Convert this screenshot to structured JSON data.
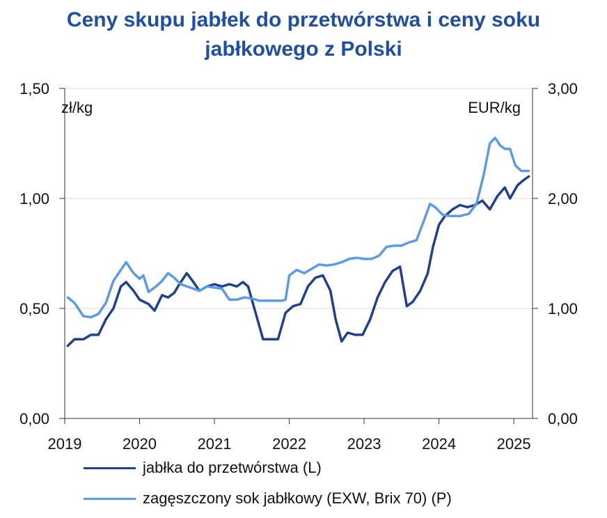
{
  "title_line1": "Ceny skupu jabłek do przetwórstwa i ceny soku",
  "title_line2": "jabłkowego z Polski",
  "chart_data": {
    "type": "line",
    "left_axis": {
      "unit": "zł/kg",
      "ylim": [
        0,
        1.5
      ],
      "ticks": [
        "0,00",
        "0,50",
        "1,00",
        "1,50"
      ]
    },
    "right_axis": {
      "unit": "EUR/kg",
      "ylim": [
        0,
        3.0
      ],
      "ticks": [
        "0,00",
        "1,00",
        "2,00",
        "3,00"
      ]
    },
    "x_axis": {
      "range": [
        2019.0,
        2025.25
      ],
      "ticks": [
        "2019",
        "2020",
        "2021",
        "2022",
        "2023",
        "2024",
        "2025"
      ]
    },
    "grid": true,
    "series": [
      {
        "name": "jabłka do przetwórstwa (L)",
        "axis": "left",
        "color": "#1f3f8f",
        "points": [
          [
            2019.04,
            0.33
          ],
          [
            2019.13,
            0.36
          ],
          [
            2019.25,
            0.36
          ],
          [
            2019.35,
            0.38
          ],
          [
            2019.45,
            0.38
          ],
          [
            2019.55,
            0.45
          ],
          [
            2019.65,
            0.5
          ],
          [
            2019.75,
            0.6
          ],
          [
            2019.82,
            0.62
          ],
          [
            2019.92,
            0.58
          ],
          [
            2020.0,
            0.54
          ],
          [
            2020.12,
            0.52
          ],
          [
            2020.2,
            0.49
          ],
          [
            2020.3,
            0.56
          ],
          [
            2020.38,
            0.55
          ],
          [
            2020.46,
            0.57
          ],
          [
            2020.55,
            0.62
          ],
          [
            2020.63,
            0.66
          ],
          [
            2020.72,
            0.62
          ],
          [
            2020.8,
            0.58
          ],
          [
            2020.9,
            0.6
          ],
          [
            2021.0,
            0.61
          ],
          [
            2021.1,
            0.6
          ],
          [
            2021.2,
            0.61
          ],
          [
            2021.3,
            0.6
          ],
          [
            2021.38,
            0.62
          ],
          [
            2021.45,
            0.6
          ],
          [
            2021.55,
            0.48
          ],
          [
            2021.65,
            0.36
          ],
          [
            2021.75,
            0.36
          ],
          [
            2021.85,
            0.36
          ],
          [
            2021.95,
            0.48
          ],
          [
            2022.05,
            0.51
          ],
          [
            2022.15,
            0.52
          ],
          [
            2022.25,
            0.6
          ],
          [
            2022.35,
            0.64
          ],
          [
            2022.45,
            0.65
          ],
          [
            2022.55,
            0.58
          ],
          [
            2022.62,
            0.45
          ],
          [
            2022.7,
            0.35
          ],
          [
            2022.78,
            0.39
          ],
          [
            2022.88,
            0.38
          ],
          [
            2022.98,
            0.38
          ],
          [
            2023.08,
            0.45
          ],
          [
            2023.18,
            0.55
          ],
          [
            2023.28,
            0.62
          ],
          [
            2023.38,
            0.67
          ],
          [
            2023.48,
            0.69
          ],
          [
            2023.57,
            0.51
          ],
          [
            2023.65,
            0.53
          ],
          [
            2023.75,
            0.58
          ],
          [
            2023.85,
            0.66
          ],
          [
            2023.92,
            0.78
          ],
          [
            2024.0,
            0.88
          ],
          [
            2024.08,
            0.92
          ],
          [
            2024.18,
            0.95
          ],
          [
            2024.28,
            0.97
          ],
          [
            2024.38,
            0.96
          ],
          [
            2024.48,
            0.97
          ],
          [
            2024.58,
            0.99
          ],
          [
            2024.68,
            0.95
          ],
          [
            2024.78,
            1.01
          ],
          [
            2024.88,
            1.05
          ],
          [
            2024.95,
            1.0
          ],
          [
            2025.05,
            1.06
          ],
          [
            2025.12,
            1.08
          ],
          [
            2025.2,
            1.1
          ]
        ]
      },
      {
        "name": "zagęszczony sok jabłkowy (EXW, Brix 70) (P)",
        "axis": "right",
        "color": "#5b9be6",
        "points": [
          [
            2019.04,
            1.1
          ],
          [
            2019.13,
            1.05
          ],
          [
            2019.25,
            0.93
          ],
          [
            2019.35,
            0.92
          ],
          [
            2019.45,
            0.95
          ],
          [
            2019.55,
            1.05
          ],
          [
            2019.65,
            1.25
          ],
          [
            2019.75,
            1.35
          ],
          [
            2019.82,
            1.42
          ],
          [
            2019.92,
            1.32
          ],
          [
            2020.0,
            1.27
          ],
          [
            2020.05,
            1.3
          ],
          [
            2020.12,
            1.15
          ],
          [
            2020.22,
            1.2
          ],
          [
            2020.3,
            1.25
          ],
          [
            2020.38,
            1.32
          ],
          [
            2020.46,
            1.28
          ],
          [
            2020.55,
            1.22
          ],
          [
            2020.63,
            1.2
          ],
          [
            2020.72,
            1.18
          ],
          [
            2020.8,
            1.16
          ],
          [
            2020.9,
            1.2
          ],
          [
            2021.0,
            1.19
          ],
          [
            2021.1,
            1.18
          ],
          [
            2021.2,
            1.08
          ],
          [
            2021.3,
            1.08
          ],
          [
            2021.4,
            1.1
          ],
          [
            2021.5,
            1.09
          ],
          [
            2021.6,
            1.07
          ],
          [
            2021.7,
            1.07
          ],
          [
            2021.8,
            1.07
          ],
          [
            2021.9,
            1.07
          ],
          [
            2021.95,
            1.08
          ],
          [
            2022.0,
            1.3
          ],
          [
            2022.1,
            1.35
          ],
          [
            2022.2,
            1.32
          ],
          [
            2022.3,
            1.36
          ],
          [
            2022.4,
            1.4
          ],
          [
            2022.5,
            1.39
          ],
          [
            2022.6,
            1.4
          ],
          [
            2022.7,
            1.42
          ],
          [
            2022.8,
            1.45
          ],
          [
            2022.9,
            1.46
          ],
          [
            2023.0,
            1.45
          ],
          [
            2023.1,
            1.45
          ],
          [
            2023.2,
            1.48
          ],
          [
            2023.3,
            1.56
          ],
          [
            2023.4,
            1.57
          ],
          [
            2023.5,
            1.57
          ],
          [
            2023.6,
            1.6
          ],
          [
            2023.7,
            1.62
          ],
          [
            2023.8,
            1.8
          ],
          [
            2023.88,
            1.95
          ],
          [
            2023.95,
            1.92
          ],
          [
            2024.05,
            1.85
          ],
          [
            2024.15,
            1.84
          ],
          [
            2024.28,
            1.84
          ],
          [
            2024.4,
            1.86
          ],
          [
            2024.5,
            1.95
          ],
          [
            2024.6,
            2.22
          ],
          [
            2024.68,
            2.5
          ],
          [
            2024.75,
            2.55
          ],
          [
            2024.82,
            2.48
          ],
          [
            2024.88,
            2.45
          ],
          [
            2024.95,
            2.45
          ],
          [
            2025.02,
            2.3
          ],
          [
            2025.1,
            2.25
          ],
          [
            2025.2,
            2.25
          ]
        ]
      }
    ]
  }
}
